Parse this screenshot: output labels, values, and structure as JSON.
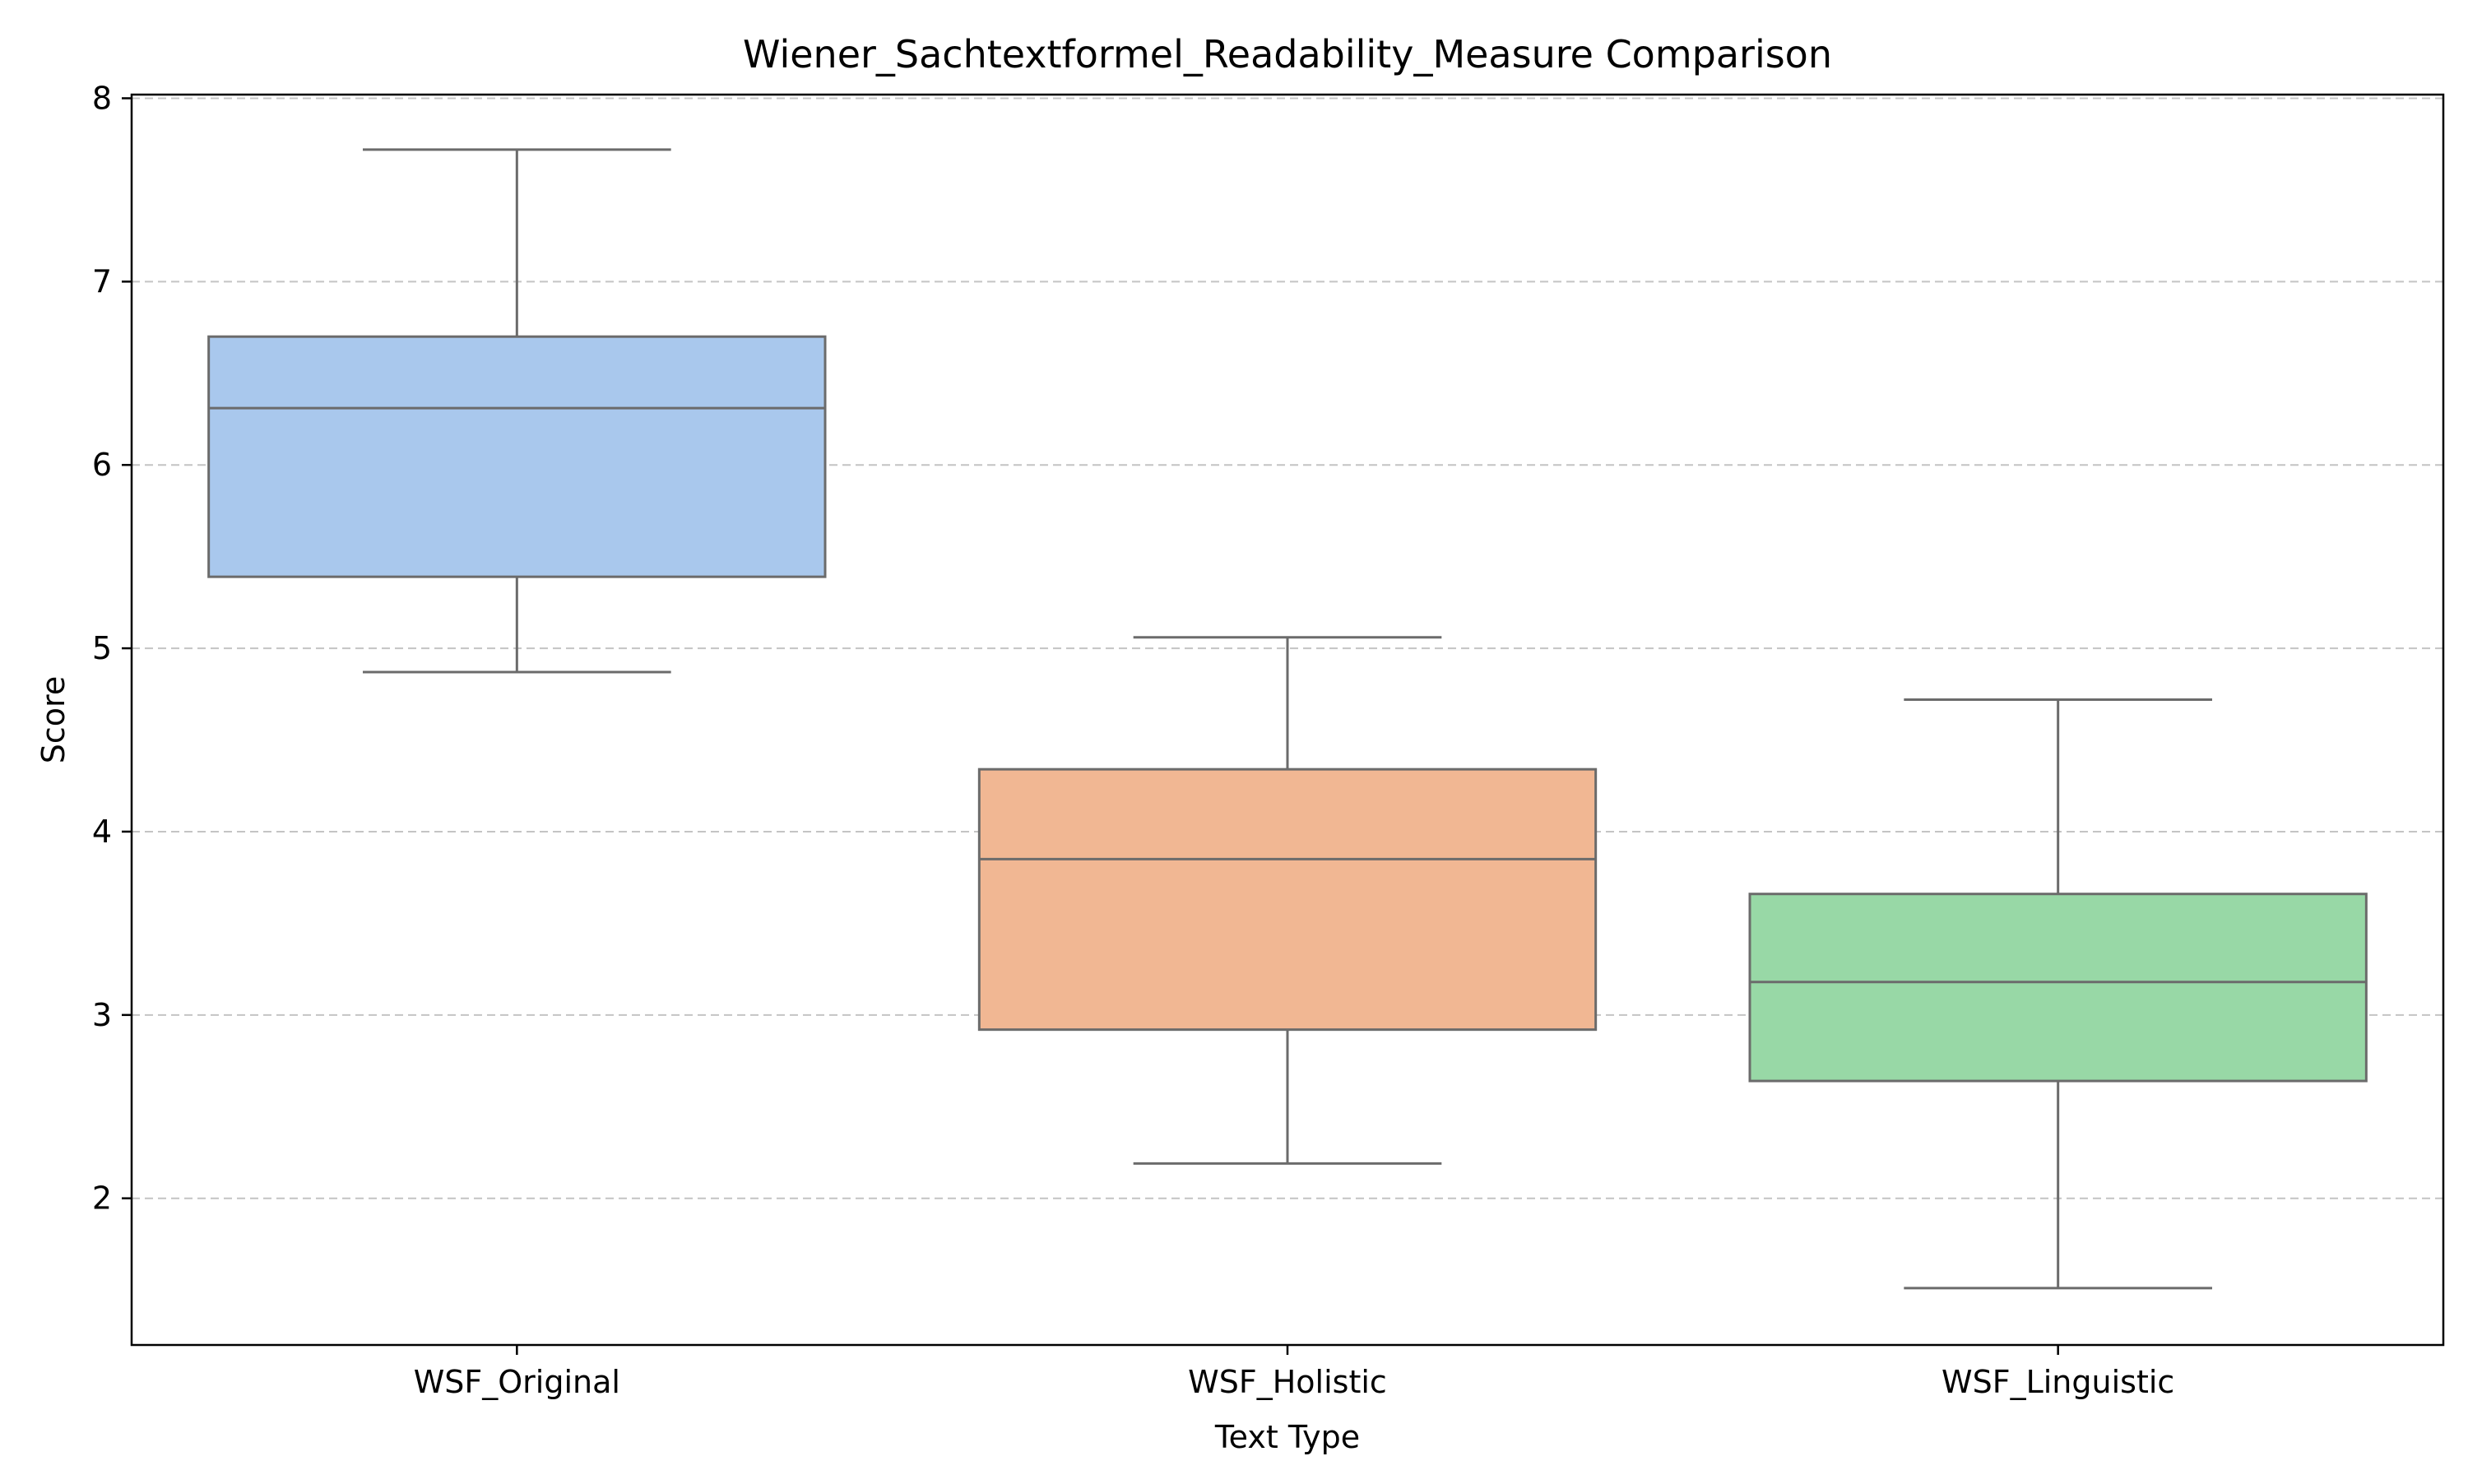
{
  "chart_data": {
    "type": "box",
    "title": "Wiener_Sachtextformel_Readability_Measure Comparison",
    "xlabel": "Text Type",
    "ylabel": "Score",
    "ylim": [
      1.2,
      8.02
    ],
    "yticks": [
      2,
      3,
      4,
      5,
      6,
      7,
      8
    ],
    "grid": "y-dashed",
    "categories": [
      "WSF_Original",
      "WSF_Holistic",
      "WSF_Linguistic"
    ],
    "boxes": [
      {
        "category": "WSF_Original",
        "whisker_low": 4.87,
        "q1": 5.39,
        "median": 6.31,
        "q3": 6.7,
        "whisker_high": 7.72,
        "color": "#a9c8ed"
      },
      {
        "category": "WSF_Holistic",
        "whisker_low": 2.19,
        "q1": 2.92,
        "median": 3.85,
        "q3": 4.34,
        "whisker_high": 5.06,
        "color": "#f1b793"
      },
      {
        "category": "WSF_Linguistic",
        "whisker_low": 1.51,
        "q1": 2.64,
        "median": 3.18,
        "q3": 3.66,
        "whisker_high": 4.72,
        "color": "#98d8a6"
      }
    ]
  }
}
